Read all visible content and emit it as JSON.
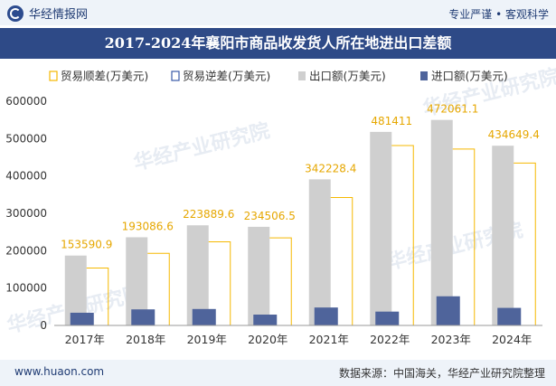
{
  "header": {
    "brand": "华经情报网",
    "right_text": "专业严谨 • 客观科学",
    "title": "2017-2024年襄阳市商品收发货人所在地进出口差额"
  },
  "footer": {
    "url": "www.huaon.com",
    "source": "数据来源：中国海关，华经产业研究院整理"
  },
  "watermark": "华经产业研究院",
  "colors": {
    "surplus": "#f5b800",
    "deficit": "#3a5aa8",
    "export": "#cfcfcf",
    "import": "#4f649b"
  },
  "chart_data": {
    "type": "bar",
    "categories": [
      "2017年",
      "2018年",
      "2019年",
      "2020年",
      "2021年",
      "2022年",
      "2023年",
      "2024年"
    ],
    "series": [
      {
        "name": "贸易顺差(万美元)",
        "values": [
          153590.9,
          193086.6,
          223889.6,
          234506.5,
          342228.4,
          481411,
          472061.1,
          434649.4
        ]
      },
      {
        "name": "贸易逆差(万美元)",
        "values": [
          0,
          0,
          0,
          0,
          0,
          0,
          0,
          0
        ]
      },
      {
        "name": "出口额(万美元)",
        "values": [
          187000,
          236000,
          268000,
          264000,
          391000,
          518000,
          550000,
          481000
        ]
      },
      {
        "name": "进口额(万美元)",
        "values": [
          34000,
          43000,
          44000,
          29000,
          48000,
          37000,
          78000,
          47000
        ]
      }
    ],
    "data_labels": [
      "153590.9",
      "193086.6",
      "223889.6",
      "234506.5",
      "342228.4",
      "481411",
      "472061.1",
      "434649.4"
    ],
    "ylim": [
      0,
      600000
    ],
    "yticks": [
      "0",
      "100000",
      "200000",
      "300000",
      "400000",
      "500000",
      "600000"
    ],
    "legend_position": "top",
    "grid": false
  }
}
